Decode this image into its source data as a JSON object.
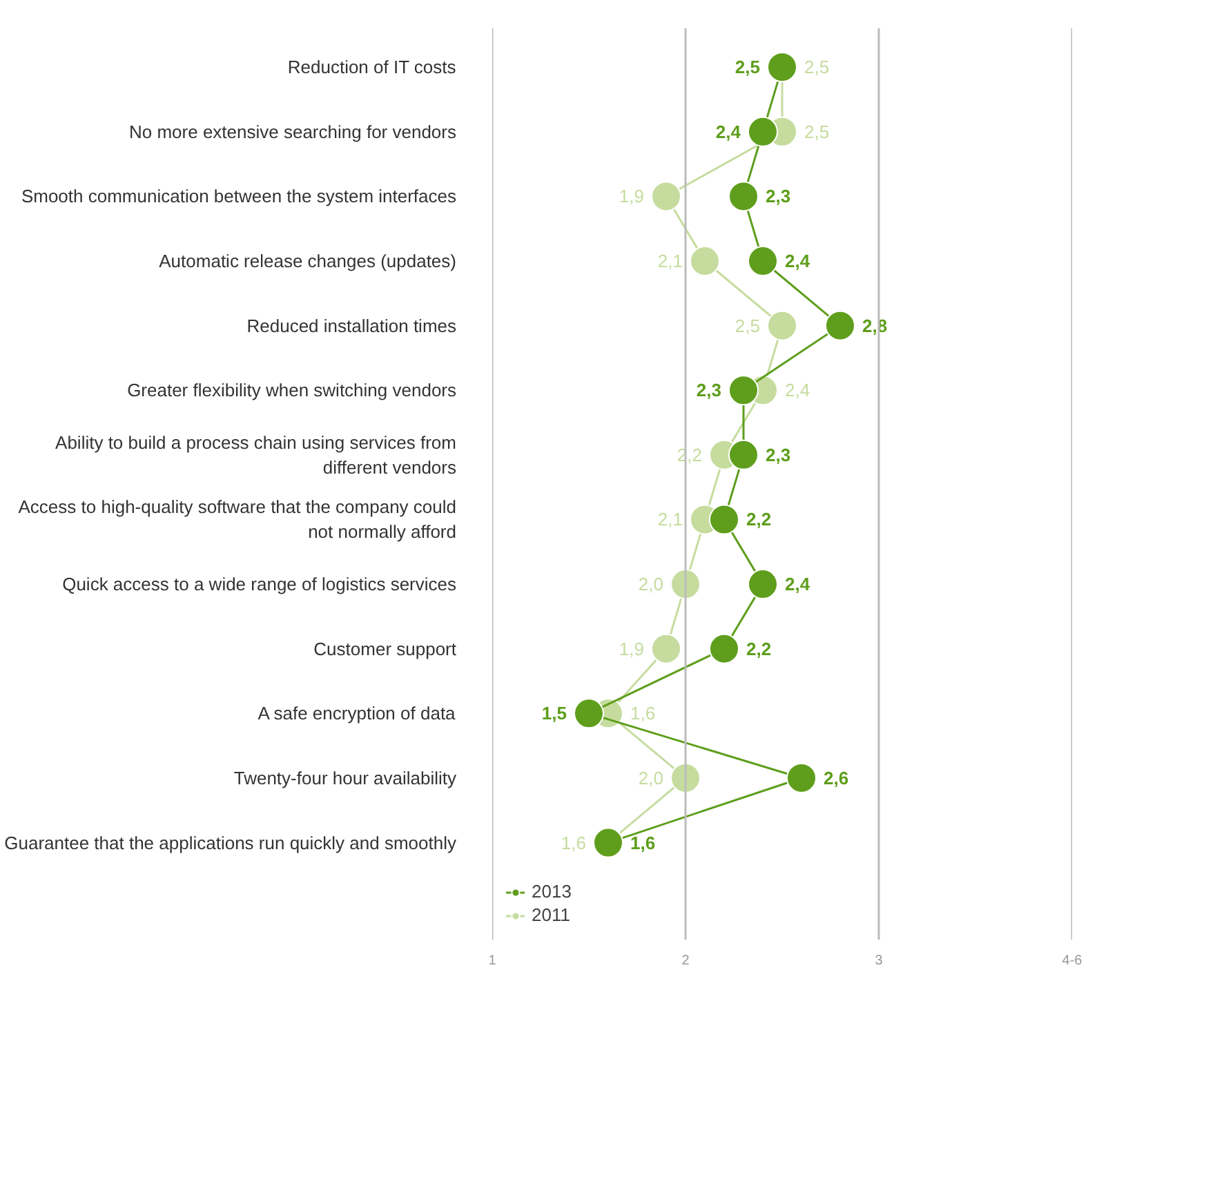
{
  "chart_data": {
    "type": "line",
    "orientation": "horizontal",
    "categories": [
      "Reduction of IT costs",
      "No more extensive searching for vendors",
      "Smooth communication between the system interfaces",
      "Automatic release changes (updates)",
      "Reduced installation times",
      "Greater flexibility when switching vendors",
      "Ability to build a process chain using services from different vendors",
      "Access to high-quality software that the company could not normally afford",
      "Quick access to a wide range of logistics services",
      "Customer support",
      "A safe encryption of data",
      "Twenty-four hour availability",
      "Guarantee that the applications run quickly and smoothly"
    ],
    "series": [
      {
        "name": "2013",
        "color": "#5e9e1c",
        "values": [
          2.5,
          2.4,
          2.3,
          2.4,
          2.8,
          2.3,
          2.3,
          2.2,
          2.4,
          2.2,
          1.5,
          2.6,
          1.6
        ],
        "value_labels": [
          "2,5",
          "2,4",
          "2,3",
          "2,4",
          "2,8",
          "2,3",
          "2,3",
          "2,2",
          "2,4",
          "2,2",
          "1,5",
          "2,6",
          "1,6"
        ]
      },
      {
        "name": "2011",
        "color": "#c6dc9e",
        "values": [
          2.5,
          2.5,
          1.9,
          2.1,
          2.5,
          2.4,
          2.2,
          2.1,
          2.0,
          1.9,
          1.6,
          2.0,
          1.6
        ],
        "value_labels": [
          "2,5",
          "2,5",
          "1,9",
          "2,1",
          "2,5",
          "2,4",
          "2,2",
          "2,1",
          "2,0",
          "1,9",
          "1,6",
          "2,0",
          "1,6"
        ]
      }
    ],
    "xlim": [
      1,
      4
    ],
    "xticks": [
      1,
      2,
      3,
      {
        "value": 4,
        "label": "4-6"
      }
    ],
    "grid": "x",
    "legend": "bottom",
    "marker": "circle",
    "line_style": "solid"
  }
}
